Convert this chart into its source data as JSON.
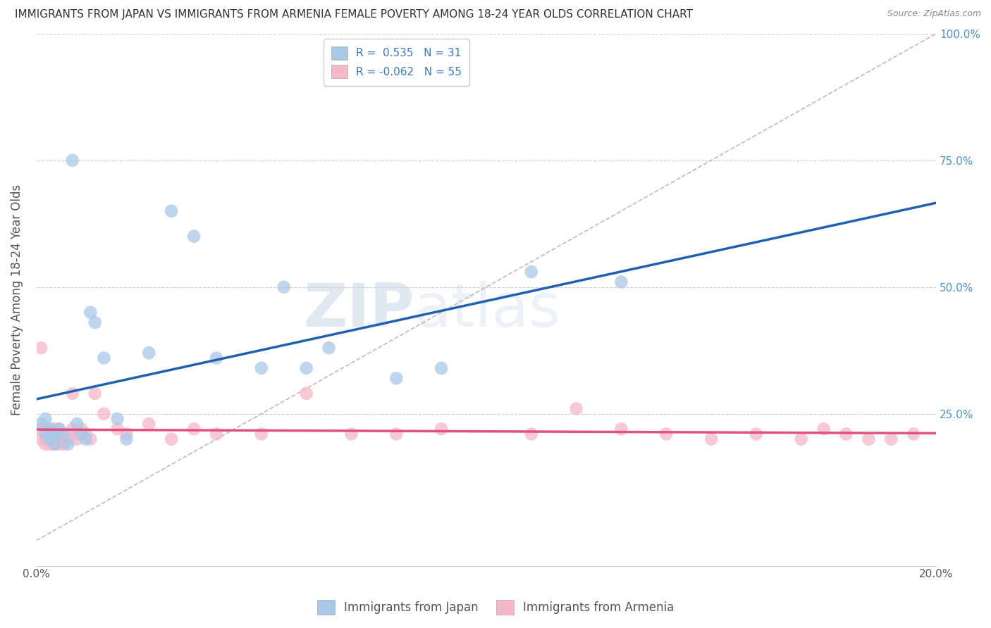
{
  "title": "IMMIGRANTS FROM JAPAN VS IMMIGRANTS FROM ARMENIA FEMALE POVERTY AMONG 18-24 YEAR OLDS CORRELATION CHART",
  "source": "Source: ZipAtlas.com",
  "ylabel": "Female Poverty Among 18-24 Year Olds",
  "xlabel_japan": "Immigrants from Japan",
  "xlabel_armenia": "Immigrants from Armenia",
  "xlim": [
    0.0,
    0.2
  ],
  "ylim": [
    -0.05,
    1.0
  ],
  "ytick_vals": [
    0.0,
    0.25,
    0.5,
    0.75,
    1.0
  ],
  "ytick_labels_right": [
    "",
    "25.0%",
    "50.0%",
    "75.0%",
    "100.0%"
  ],
  "xtick_vals": [
    0.0,
    0.05,
    0.1,
    0.15,
    0.2
  ],
  "xtick_labels": [
    "0.0%",
    "",
    "",
    "",
    "20.0%"
  ],
  "japan_R": 0.535,
  "japan_N": 31,
  "armenia_R": -0.062,
  "armenia_N": 55,
  "japan_color": "#a8c8e8",
  "armenia_color": "#f5b8c8",
  "japan_line_color": "#2060b0",
  "armenia_line_color": "#e05080",
  "watermark_zip": "ZIP",
  "watermark_atlas": "atlas",
  "japan_x": [
    0.001,
    0.002,
    0.002,
    0.003,
    0.003,
    0.004,
    0.004,
    0.005,
    0.006,
    0.007,
    0.008,
    0.009,
    0.01,
    0.011,
    0.012,
    0.013,
    0.015,
    0.018,
    0.02,
    0.025,
    0.03,
    0.035,
    0.04,
    0.05,
    0.055,
    0.06,
    0.065,
    0.08,
    0.09,
    0.11,
    0.13
  ],
  "japan_y": [
    0.23,
    0.21,
    0.24,
    0.2,
    0.22,
    0.21,
    0.19,
    0.22,
    0.21,
    0.19,
    0.75,
    0.23,
    0.21,
    0.2,
    0.45,
    0.43,
    0.36,
    0.24,
    0.2,
    0.37,
    0.65,
    0.6,
    0.36,
    0.34,
    0.5,
    0.34,
    0.38,
    0.32,
    0.34,
    0.53,
    0.51
  ],
  "armenia_x": [
    0.001,
    0.001,
    0.001,
    0.002,
    0.002,
    0.002,
    0.002,
    0.003,
    0.003,
    0.003,
    0.003,
    0.004,
    0.004,
    0.004,
    0.004,
    0.005,
    0.005,
    0.005,
    0.005,
    0.006,
    0.006,
    0.007,
    0.007,
    0.008,
    0.008,
    0.009,
    0.009,
    0.01,
    0.011,
    0.012,
    0.013,
    0.015,
    0.018,
    0.02,
    0.025,
    0.03,
    0.035,
    0.04,
    0.05,
    0.06,
    0.07,
    0.08,
    0.09,
    0.11,
    0.12,
    0.13,
    0.14,
    0.15,
    0.16,
    0.17,
    0.175,
    0.18,
    0.185,
    0.19,
    0.195
  ],
  "armenia_y": [
    0.22,
    0.2,
    0.38,
    0.21,
    0.2,
    0.19,
    0.22,
    0.2,
    0.21,
    0.19,
    0.21,
    0.2,
    0.22,
    0.19,
    0.21,
    0.2,
    0.22,
    0.19,
    0.21,
    0.2,
    0.19,
    0.21,
    0.2,
    0.29,
    0.22,
    0.21,
    0.2,
    0.22,
    0.21,
    0.2,
    0.29,
    0.25,
    0.22,
    0.21,
    0.23,
    0.2,
    0.22,
    0.21,
    0.21,
    0.29,
    0.21,
    0.21,
    0.22,
    0.21,
    0.26,
    0.22,
    0.21,
    0.2,
    0.21,
    0.2,
    0.22,
    0.21,
    0.2,
    0.2,
    0.21
  ]
}
